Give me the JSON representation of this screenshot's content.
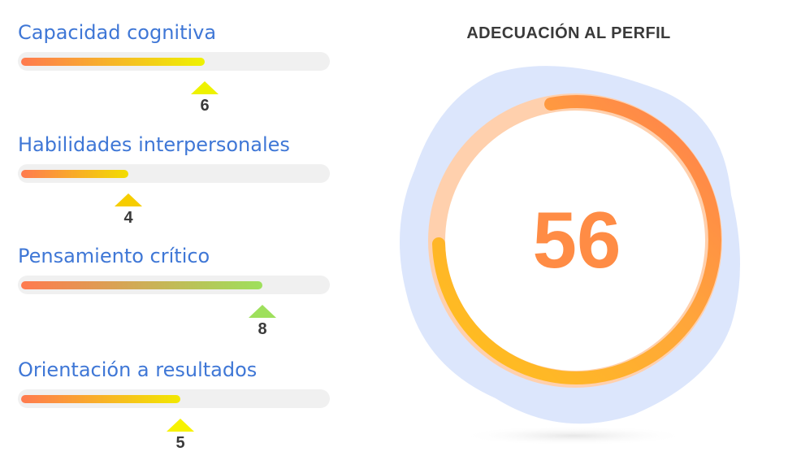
{
  "metrics": [
    {
      "label": "Capacidad cognitiva",
      "value": "6",
      "fraction": 0.6,
      "gradient_end": "#eef200",
      "marker_color": "#eef200"
    },
    {
      "label": "Habilidades interpersonales",
      "value": "4",
      "fraction": 0.35,
      "gradient_end": "#f2dd00",
      "marker_color": "#f6cd00"
    },
    {
      "label": "Pensamiento crítico",
      "value": "8",
      "fraction": 0.79,
      "gradient_end": "#9ee05c",
      "marker_color": "#9ee05c"
    },
    {
      "label": "Orientación a resultados",
      "value": "5",
      "fraction": 0.52,
      "gradient_end": "#f2e800",
      "marker_color": "#f7f200"
    }
  ],
  "profile_fit": {
    "title": "ADECUACIÓN AL PERFIL",
    "score": "56",
    "fraction": 0.56
  },
  "colors": {
    "label": "#3f77d6",
    "score": "#ff8c45",
    "gradient_start": "#ff7a4f",
    "backdrop": "#dce6fc",
    "ring_track": "#ffd0ad"
  }
}
